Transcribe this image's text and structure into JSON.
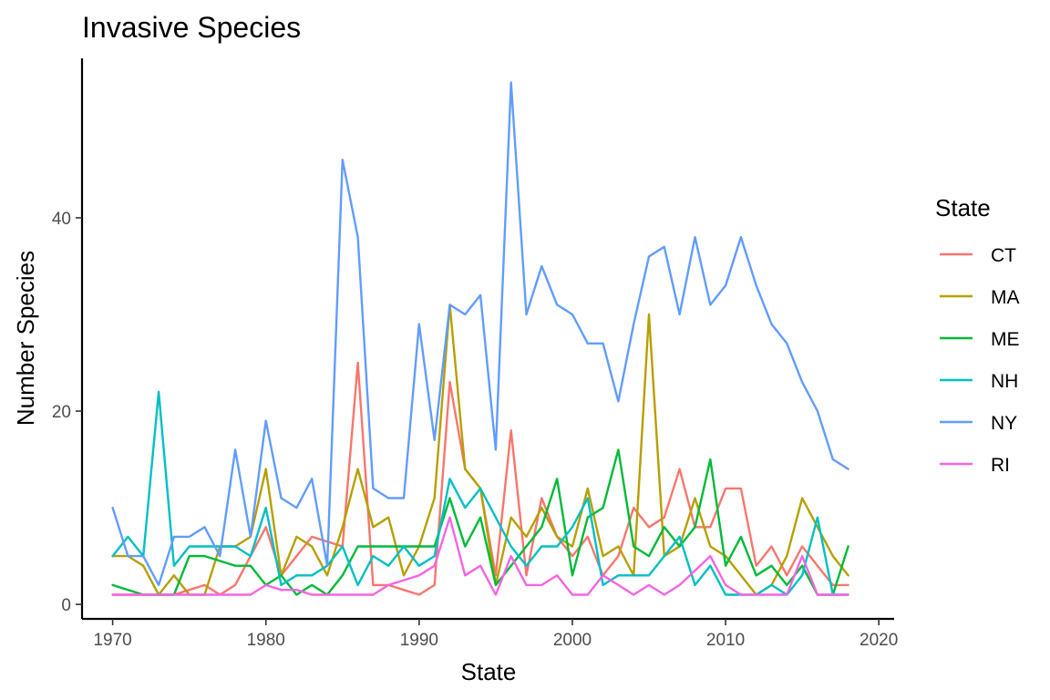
{
  "chart_data": {
    "type": "line",
    "title": "Invasive Species",
    "xlabel": "State",
    "ylabel": "Number Species",
    "xlim": [
      1968,
      2021
    ],
    "ylim": [
      -1.5,
      56.5
    ],
    "x_ticks": [
      1970,
      1980,
      1990,
      2000,
      2010,
      2020
    ],
    "y_ticks": [
      0,
      20,
      40
    ],
    "grid": false,
    "legend": {
      "title": "State",
      "placement": "right"
    },
    "series": [
      {
        "name": "CT",
        "color": "#F8766D",
        "points": [
          [
            1970,
            1
          ],
          [
            1971,
            1
          ],
          [
            1972,
            1
          ],
          [
            1973,
            1
          ],
          [
            1974,
            1
          ],
          [
            1975,
            1.5
          ],
          [
            1976,
            2
          ],
          [
            1977,
            1
          ],
          [
            1978,
            2
          ],
          [
            1979,
            5
          ],
          [
            1980,
            8
          ],
          [
            1981,
            3
          ],
          [
            1982,
            5
          ],
          [
            1983,
            7
          ],
          [
            1984,
            6.5
          ],
          [
            1985,
            6
          ],
          [
            1986,
            25
          ],
          [
            1987,
            2
          ],
          [
            1988,
            2
          ],
          [
            1989,
            1.5
          ],
          [
            1990,
            1
          ],
          [
            1991,
            2
          ],
          [
            1992,
            23
          ],
          [
            1993,
            14
          ],
          [
            1994,
            12
          ],
          [
            1995,
            3
          ],
          [
            1996,
            18
          ],
          [
            1997,
            3
          ],
          [
            1998,
            11
          ],
          [
            1999,
            7
          ],
          [
            2000,
            5
          ],
          [
            2001,
            7
          ],
          [
            2002,
            3
          ],
          [
            2003,
            5
          ],
          [
            2004,
            10
          ],
          [
            2005,
            8
          ],
          [
            2006,
            9
          ],
          [
            2007,
            14
          ],
          [
            2008,
            8
          ],
          [
            2009,
            8
          ],
          [
            2010,
            12
          ],
          [
            2011,
            12
          ],
          [
            2012,
            4
          ],
          [
            2013,
            6
          ],
          [
            2014,
            3
          ],
          [
            2015,
            6
          ],
          [
            2016,
            4
          ],
          [
            2017,
            2
          ],
          [
            2018,
            2
          ]
        ]
      },
      {
        "name": "MA",
        "color": "#B79F00",
        "points": [
          [
            1970,
            5
          ],
          [
            1971,
            5
          ],
          [
            1972,
            4
          ],
          [
            1973,
            1
          ],
          [
            1974,
            3
          ],
          [
            1975,
            1
          ],
          [
            1976,
            1
          ],
          [
            1977,
            6
          ],
          [
            1978,
            6
          ],
          [
            1979,
            7
          ],
          [
            1980,
            14
          ],
          [
            1981,
            3
          ],
          [
            1982,
            7
          ],
          [
            1983,
            6
          ],
          [
            1984,
            3
          ],
          [
            1985,
            8
          ],
          [
            1986,
            14
          ],
          [
            1987,
            8
          ],
          [
            1988,
            9
          ],
          [
            1989,
            3
          ],
          [
            1990,
            6
          ],
          [
            1991,
            11
          ],
          [
            1992,
            31
          ],
          [
            1993,
            14
          ],
          [
            1994,
            12
          ],
          [
            1995,
            2
          ],
          [
            1996,
            9
          ],
          [
            1997,
            7
          ],
          [
            1998,
            10
          ],
          [
            1999,
            7
          ],
          [
            2000,
            6
          ],
          [
            2001,
            12
          ],
          [
            2002,
            5
          ],
          [
            2003,
            6
          ],
          [
            2004,
            3
          ],
          [
            2005,
            30
          ],
          [
            2006,
            5
          ],
          [
            2007,
            6
          ],
          [
            2008,
            11
          ],
          [
            2009,
            6
          ],
          [
            2010,
            5
          ],
          [
            2011,
            3
          ],
          [
            2012,
            1
          ],
          [
            2013,
            2
          ],
          [
            2014,
            5
          ],
          [
            2015,
            11
          ],
          [
            2016,
            8
          ],
          [
            2017,
            5
          ],
          [
            2018,
            3
          ]
        ]
      },
      {
        "name": "ME",
        "color": "#00BA38",
        "points": [
          [
            1970,
            2
          ],
          [
            1972,
            1
          ],
          [
            1973,
            1
          ],
          [
            1974,
            1
          ],
          [
            1975,
            5
          ],
          [
            1976,
            5
          ],
          [
            1977,
            4.5
          ],
          [
            1978,
            4
          ],
          [
            1979,
            4
          ],
          [
            1980,
            2
          ],
          [
            1981,
            3
          ],
          [
            1982,
            1
          ],
          [
            1983,
            2
          ],
          [
            1984,
            1
          ],
          [
            1985,
            3
          ],
          [
            1986,
            6
          ],
          [
            1987,
            6
          ],
          [
            1988,
            6
          ],
          [
            1989,
            6
          ],
          [
            1990,
            6
          ],
          [
            1991,
            6
          ],
          [
            1992,
            11
          ],
          [
            1993,
            6
          ],
          [
            1994,
            9
          ],
          [
            1995,
            2
          ],
          [
            1996,
            4
          ],
          [
            1997,
            6
          ],
          [
            1998,
            8
          ],
          [
            1999,
            13
          ],
          [
            2000,
            3
          ],
          [
            2001,
            9
          ],
          [
            2002,
            10
          ],
          [
            2003,
            16
          ],
          [
            2004,
            6
          ],
          [
            2005,
            5
          ],
          [
            2006,
            8
          ],
          [
            2007,
            6
          ],
          [
            2008,
            8
          ],
          [
            2009,
            15
          ],
          [
            2010,
            4
          ],
          [
            2011,
            7
          ],
          [
            2012,
            3
          ],
          [
            2013,
            4
          ],
          [
            2014,
            2
          ],
          [
            2015,
            4
          ],
          [
            2016,
            1
          ],
          [
            2017,
            1
          ],
          [
            2018,
            6
          ]
        ]
      },
      {
        "name": "NH",
        "color": "#00BFC4",
        "points": [
          [
            1970,
            5
          ],
          [
            1971,
            7
          ],
          [
            1972,
            5
          ],
          [
            1973,
            22
          ],
          [
            1974,
            4
          ],
          [
            1975,
            6
          ],
          [
            1976,
            6
          ],
          [
            1977,
            6
          ],
          [
            1978,
            6
          ],
          [
            1979,
            5
          ],
          [
            1980,
            10
          ],
          [
            1981,
            2
          ],
          [
            1982,
            3
          ],
          [
            1983,
            3
          ],
          [
            1984,
            4
          ],
          [
            1985,
            6
          ],
          [
            1986,
            2
          ],
          [
            1987,
            5
          ],
          [
            1988,
            4
          ],
          [
            1989,
            6
          ],
          [
            1990,
            4
          ],
          [
            1991,
            5
          ],
          [
            1992,
            13
          ],
          [
            1993,
            10
          ],
          [
            1994,
            12
          ],
          [
            1995,
            9
          ],
          [
            1996,
            6
          ],
          [
            1997,
            4
          ],
          [
            1998,
            6
          ],
          [
            1999,
            6
          ],
          [
            2000,
            8
          ],
          [
            2001,
            11
          ],
          [
            2002,
            2
          ],
          [
            2003,
            3
          ],
          [
            2004,
            3
          ],
          [
            2005,
            3
          ],
          [
            2006,
            5
          ],
          [
            2007,
            7
          ],
          [
            2008,
            2
          ],
          [
            2009,
            4
          ],
          [
            2010,
            1
          ],
          [
            2011,
            1
          ],
          [
            2012,
            1
          ],
          [
            2013,
            2
          ],
          [
            2014,
            1
          ],
          [
            2015,
            3
          ],
          [
            2016,
            9
          ],
          [
            2017,
            1
          ],
          [
            2018,
            1
          ]
        ]
      },
      {
        "name": "NY",
        "color": "#619CFF",
        "points": [
          [
            1970,
            10
          ],
          [
            1971,
            5
          ],
          [
            1972,
            5
          ],
          [
            1973,
            2
          ],
          [
            1974,
            7
          ],
          [
            1975,
            7
          ],
          [
            1976,
            8
          ],
          [
            1977,
            5
          ],
          [
            1978,
            16
          ],
          [
            1979,
            7
          ],
          [
            1980,
            19
          ],
          [
            1981,
            11
          ],
          [
            1982,
            10
          ],
          [
            1983,
            13
          ],
          [
            1984,
            4
          ],
          [
            1985,
            46
          ],
          [
            1986,
            38
          ],
          [
            1987,
            12
          ],
          [
            1988,
            11
          ],
          [
            1989,
            11
          ],
          [
            1990,
            29
          ],
          [
            1991,
            17
          ],
          [
            1992,
            31
          ],
          [
            1993,
            30
          ],
          [
            1994,
            32
          ],
          [
            1995,
            16
          ],
          [
            1996,
            54
          ],
          [
            1997,
            30
          ],
          [
            1998,
            35
          ],
          [
            1999,
            31
          ],
          [
            2000,
            30
          ],
          [
            2001,
            27
          ],
          [
            2002,
            27
          ],
          [
            2003,
            21
          ],
          [
            2004,
            29
          ],
          [
            2005,
            36
          ],
          [
            2006,
            37
          ],
          [
            2007,
            30
          ],
          [
            2008,
            38
          ],
          [
            2009,
            31
          ],
          [
            2010,
            33
          ],
          [
            2011,
            38
          ],
          [
            2012,
            33
          ],
          [
            2013,
            29
          ],
          [
            2014,
            27
          ],
          [
            2015,
            23
          ],
          [
            2016,
            20
          ],
          [
            2017,
            15
          ],
          [
            2018,
            14
          ]
        ]
      },
      {
        "name": "RI",
        "color": "#F564E3",
        "points": [
          [
            1970,
            1
          ],
          [
            1972,
            1
          ],
          [
            1973,
            1
          ],
          [
            1974,
            1
          ],
          [
            1975,
            1
          ],
          [
            1976,
            1
          ],
          [
            1977,
            1
          ],
          [
            1978,
            1
          ],
          [
            1979,
            1
          ],
          [
            1980,
            2
          ],
          [
            1981,
            1.5
          ],
          [
            1982,
            1.5
          ],
          [
            1983,
            1
          ],
          [
            1984,
            1
          ],
          [
            1985,
            1
          ],
          [
            1986,
            1
          ],
          [
            1987,
            1
          ],
          [
            1988,
            2
          ],
          [
            1989,
            2.5
          ],
          [
            1990,
            3
          ],
          [
            1991,
            4
          ],
          [
            1992,
            9
          ],
          [
            1993,
            3
          ],
          [
            1994,
            4
          ],
          [
            1995,
            1
          ],
          [
            1996,
            5
          ],
          [
            1997,
            2
          ],
          [
            1998,
            2
          ],
          [
            1999,
            3
          ],
          [
            2000,
            1
          ],
          [
            2001,
            1
          ],
          [
            2002,
            3
          ],
          [
            2003,
            2
          ],
          [
            2004,
            1
          ],
          [
            2005,
            2
          ],
          [
            2006,
            1
          ],
          [
            2007,
            2
          ],
          [
            2008,
            3.5
          ],
          [
            2009,
            5
          ],
          [
            2010,
            2
          ],
          [
            2011,
            1
          ],
          [
            2012,
            1
          ],
          [
            2013,
            1
          ],
          [
            2014,
            1
          ],
          [
            2015,
            5
          ],
          [
            2016,
            1
          ],
          [
            2017,
            1
          ],
          [
            2018,
            1
          ]
        ]
      }
    ]
  }
}
